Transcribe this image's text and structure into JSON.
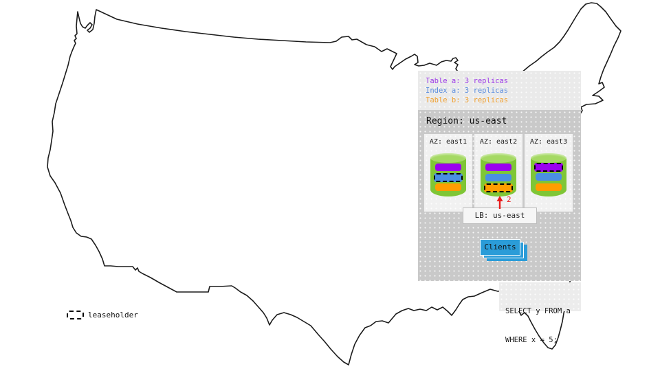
{
  "legend": {
    "items": [
      {
        "id": "table-a",
        "label": "Table a: 3 replicas"
      },
      {
        "id": "index-a",
        "label": "Index a: 3 replicas"
      },
      {
        "id": "table-b",
        "label": "Table b: 3 replicas"
      }
    ]
  },
  "region": {
    "title": "Region: us-east",
    "azs": [
      {
        "label": "AZ: east1",
        "replicas": [
          "table-a",
          "index-a",
          "table-b"
        ],
        "leaseholder": "index-a"
      },
      {
        "label": "AZ: east2",
        "replicas": [
          "table-a",
          "index-a",
          "table-b"
        ],
        "leaseholder": "table-b"
      },
      {
        "label": "AZ: east3",
        "replicas": [
          "table-a",
          "index-a",
          "table-b"
        ],
        "leaseholder": "table-a"
      }
    ]
  },
  "load_balancer": {
    "label": "LB: us-east"
  },
  "clients": {
    "label": "Clients"
  },
  "arrow_annotation": {
    "label": "2"
  },
  "query": {
    "line1": "SELECT y FROM a",
    "line2": "WHERE x = 5;"
  },
  "map_key": {
    "label": "leaseholder"
  },
  "colors": {
    "table_a": "#9b00ef",
    "index_a": "#4a8fe2",
    "table_b": "#ff9d00",
    "legend_table_a": "#9d3be8",
    "legend_index_a": "#5b8dde",
    "legend_table_b": "#f0a030",
    "cylinder_body": "#7fc636",
    "cylinder_top": "#a5d964",
    "clients_blue": "#2b9cd8",
    "arrow_red": "#e81a1a",
    "map_stroke": "#1b1b1b"
  }
}
